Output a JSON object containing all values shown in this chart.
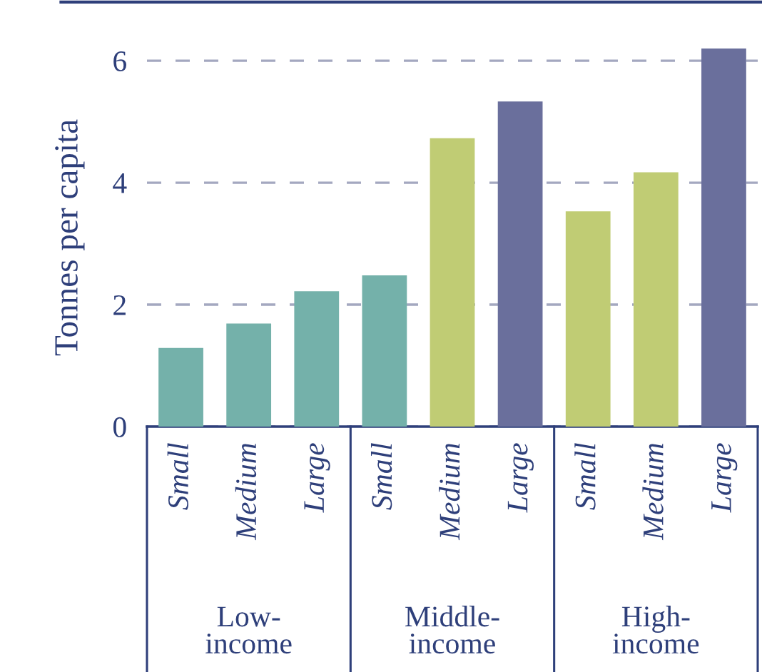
{
  "chart_data": {
    "type": "bar",
    "ylabel": "Tonnes per capita",
    "categories": [
      "Small",
      "Medium",
      "Large",
      "Small",
      "Medium",
      "Large",
      "Small",
      "Medium",
      "Large"
    ],
    "values": [
      1.29,
      1.69,
      2.22,
      2.48,
      4.73,
      5.33,
      3.53,
      4.17,
      6.2
    ],
    "colors": [
      "#74b1aa",
      "#74b1aa",
      "#74b1aa",
      "#74b1aa",
      "#c0cc74",
      "#6a6f9c",
      "#c0cc74",
      "#c0cc74",
      "#6a6f9c"
    ],
    "annotations": [
      "Low-\nincome",
      "Middle-\nincome",
      "High-\nincome"
    ],
    "ylim": [
      0,
      6.2
    ],
    "yticks": [
      0,
      2,
      4,
      6
    ],
    "grid": "y",
    "legend": false
  }
}
